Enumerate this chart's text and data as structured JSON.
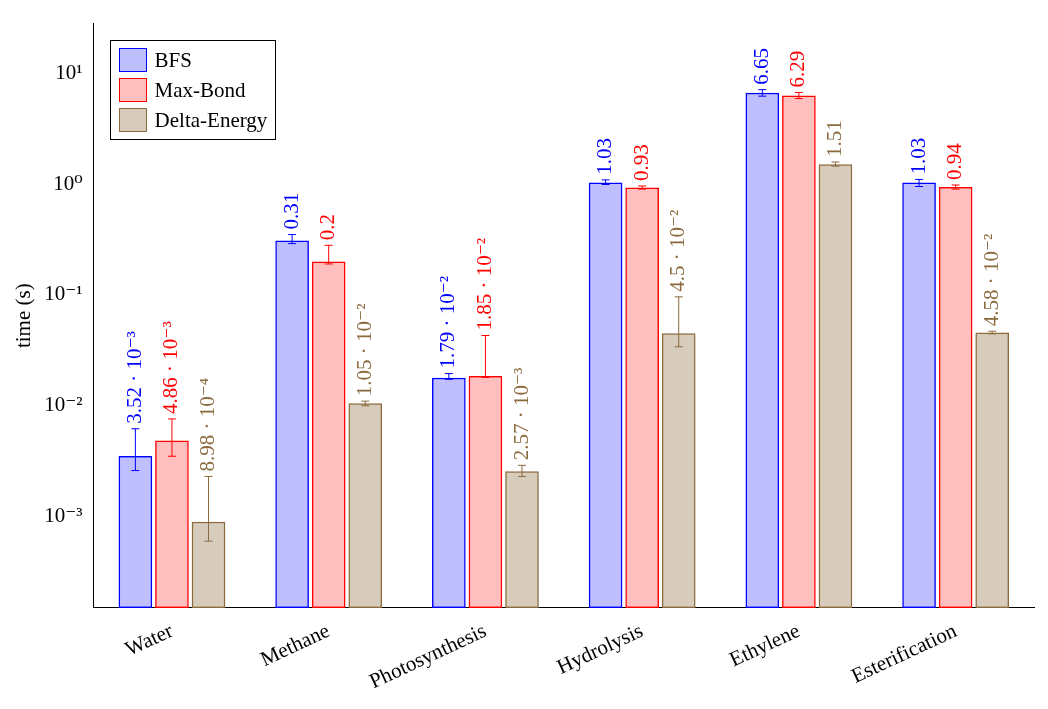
{
  "chart_data": {
    "type": "bar",
    "ylabel": "time (s)",
    "log": "y",
    "ylim": [
      0.00015,
      28
    ],
    "yticks": [
      {
        "value": 0.001,
        "label": "10⁻³"
      },
      {
        "value": 0.01,
        "label": "10⁻²"
      },
      {
        "value": 0.1,
        "label": "10⁻¹"
      },
      {
        "value": 1,
        "label": "10⁰"
      },
      {
        "value": 10,
        "label": "10¹"
      }
    ],
    "categories": [
      "Water",
      "Methane",
      "Photosynthesis",
      "Hydrolysis",
      "Ethylene",
      "Esterification"
    ],
    "series": [
      {
        "name": "BFS",
        "color": "#0000ff",
        "values": [
          0.00352,
          0.31,
          0.0179,
          1.03,
          6.65,
          1.03
        ],
        "errors": [
          [
            0.0026,
            0.0062
          ],
          [
            0.29,
            0.35
          ],
          [
            0.0173,
            0.0195
          ],
          [
            0.99,
            1.09
          ],
          [
            6.2,
            7.1
          ],
          [
            0.95,
            1.1
          ]
        ],
        "value_labels": [
          "3.52 · 10⁻³",
          "0.31",
          "1.79 · 10⁻²",
          "1.03",
          "6.65",
          "1.03"
        ]
      },
      {
        "name": "Max-Bond",
        "color": "#ff0000",
        "values": [
          0.00486,
          0.2,
          0.0185,
          0.93,
          6.29,
          0.94
        ],
        "errors": [
          [
            0.0035,
            0.0076
          ],
          [
            0.19,
            0.28
          ],
          [
            0.018,
            0.043
          ],
          [
            0.9,
            0.96
          ],
          [
            5.9,
            6.7
          ],
          [
            0.9,
            0.98
          ]
        ],
        "value_labels": [
          "4.86 · 10⁻³",
          "0.2",
          "1.85 · 10⁻²",
          "0.93",
          "6.29",
          "0.94"
        ]
      },
      {
        "name": "Delta-Energy",
        "color": "#8b6a3e",
        "values": [
          0.000898,
          0.0105,
          0.00257,
          0.045,
          1.51,
          0.0458
        ],
        "errors": [
          [
            0.0006,
            0.0023
          ],
          [
            0.01,
            0.011
          ],
          [
            0.0023,
            0.0029
          ],
          [
            0.034,
            0.096
          ],
          [
            1.45,
            1.58
          ],
          [
            0.0445,
            0.047
          ]
        ],
        "value_labels": [
          "8.98 · 10⁻⁴",
          "1.05 · 10⁻²",
          "2.57 · 10⁻³",
          "4.5 · 10⁻²",
          "1.51",
          "4.58 · 10⁻²"
        ]
      }
    ],
    "legend": "top left",
    "grid": false
  }
}
